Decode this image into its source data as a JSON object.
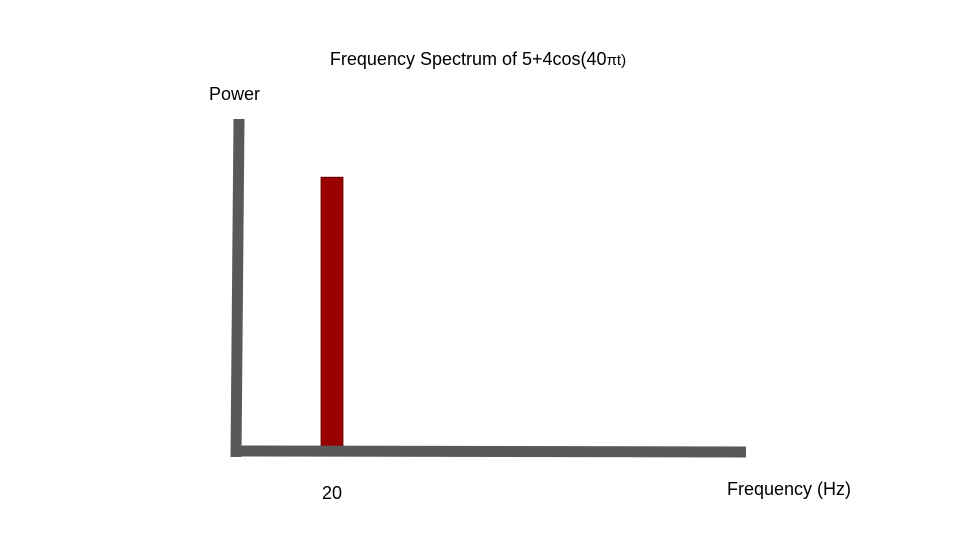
{
  "chart_data": {
    "type": "bar",
    "title_main": "Frequency Spectrum of 5+4cos(40",
    "title_symbol": "πt)",
    "xlabel": "Frequency (Hz)",
    "ylabel": "Power",
    "categories": [
      "20"
    ],
    "x": [
      20
    ],
    "values": [
      0.82
    ],
    "xlim": [
      0,
      110
    ],
    "ylim": [
      0,
      1
    ],
    "grid": false,
    "colors": {
      "bar": "#990000",
      "axis": "#595959"
    }
  }
}
